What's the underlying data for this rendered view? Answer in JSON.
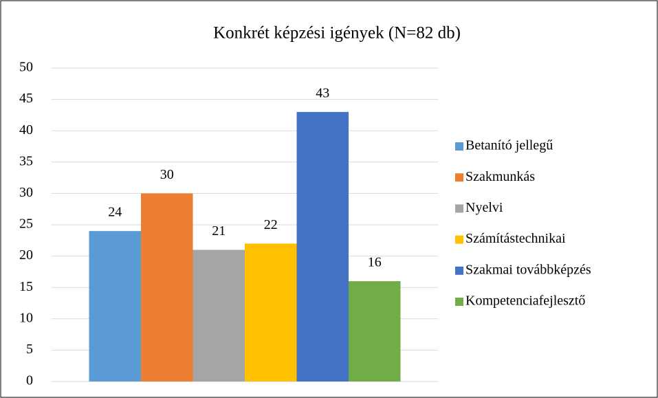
{
  "chart_data": {
    "type": "bar",
    "title": "Konkrét képzési igények (N=82 db)",
    "categories": [
      null
    ],
    "series": [
      {
        "name": "Betanító jellegű",
        "color": "#5b9bd5",
        "values": [
          24
        ]
      },
      {
        "name": "Szakmunkás",
        "color": "#ed7d31",
        "values": [
          30
        ]
      },
      {
        "name": "Nyelvi",
        "color": "#a5a5a5",
        "values": [
          21
        ]
      },
      {
        "name": "Számítástechnikai",
        "color": "#ffc000",
        "values": [
          22
        ]
      },
      {
        "name": "Szakmai továbbképzés",
        "color": "#4472c4",
        "values": [
          43
        ]
      },
      {
        "name": "Kompetenciafejlesztő",
        "color": "#70ad47",
        "values": [
          16
        ]
      }
    ],
    "ylim": [
      0,
      50
    ],
    "yticks": [
      0,
      5,
      10,
      15,
      20,
      25,
      30,
      35,
      40,
      45,
      50
    ],
    "grid": true,
    "legend": "right"
  }
}
